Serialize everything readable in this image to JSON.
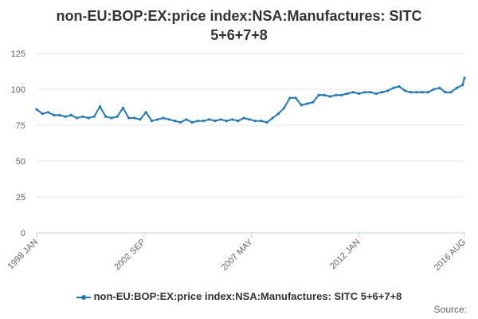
{
  "title": "non-EU:BOP:EX:price index:NSA:Manufactures: SITC 5+6+7+8",
  "source_label": "Source:",
  "colors": {
    "series": "#1f77b4",
    "grid": "#e6e6e6",
    "axis_text": "#666666"
  },
  "chart_data": {
    "type": "line",
    "title": "non-EU:BOP:EX:price index:NSA:Manufactures: SITC 5+6+7+8",
    "xlabel": "",
    "ylabel": "",
    "ylim": [
      0,
      125
    ],
    "yticks": [
      0,
      25,
      50,
      75,
      100,
      125
    ],
    "x_tick_labels": [
      "1998 JAN",
      "2002 SEP",
      "2007 MAY",
      "2012 JAN",
      "2016 AUG"
    ],
    "x_tick_dates": [
      "1998-01",
      "2002-09",
      "2007-05",
      "2012-01",
      "2016-08"
    ],
    "grid": true,
    "legend_position": "bottom",
    "series": [
      {
        "name": "non-EU:BOP:EX:price index:NSA:Manufactures: SITC 5+6+7+8",
        "x": [
          "1998-01",
          "1998-04",
          "1998-07",
          "1998-10",
          "1999-01",
          "1999-04",
          "1999-07",
          "1999-10",
          "2000-01",
          "2000-04",
          "2000-07",
          "2000-10",
          "2001-01",
          "2001-04",
          "2001-07",
          "2001-10",
          "2002-01",
          "2002-04",
          "2002-07",
          "2002-10",
          "2003-01",
          "2003-04",
          "2003-07",
          "2003-10",
          "2004-01",
          "2004-04",
          "2004-07",
          "2004-10",
          "2005-01",
          "2005-04",
          "2005-07",
          "2005-10",
          "2006-01",
          "2006-04",
          "2006-07",
          "2006-10",
          "2007-01",
          "2007-04",
          "2007-07",
          "2007-10",
          "2008-01",
          "2008-04",
          "2008-07",
          "2008-10",
          "2009-01",
          "2009-04",
          "2009-07",
          "2009-10",
          "2010-01",
          "2010-04",
          "2010-07",
          "2010-10",
          "2011-01",
          "2011-04",
          "2011-07",
          "2011-10",
          "2012-01",
          "2012-04",
          "2012-07",
          "2012-10",
          "2013-01",
          "2013-04",
          "2013-07",
          "2013-10",
          "2014-01",
          "2014-04",
          "2014-07",
          "2014-10",
          "2015-01",
          "2015-04",
          "2015-07",
          "2015-10",
          "2016-01",
          "2016-04",
          "2016-07",
          "2016-08"
        ],
        "values": [
          86,
          83,
          84,
          82,
          82,
          81,
          82,
          80,
          81,
          80,
          81,
          88,
          81,
          80,
          81,
          87,
          80,
          80,
          79,
          84,
          78,
          79,
          80,
          79,
          78,
          77,
          79,
          77,
          78,
          78,
          79,
          78,
          79,
          78,
          79,
          78,
          80,
          79,
          78,
          78,
          77,
          80,
          83,
          87,
          94,
          94,
          89,
          90,
          91,
          96,
          96,
          95,
          96,
          96,
          97,
          98,
          97,
          98,
          98,
          97,
          98,
          99,
          101,
          102,
          99,
          98,
          98,
          98,
          98,
          100,
          101,
          98,
          98,
          101,
          103,
          108
        ]
      }
    ]
  }
}
